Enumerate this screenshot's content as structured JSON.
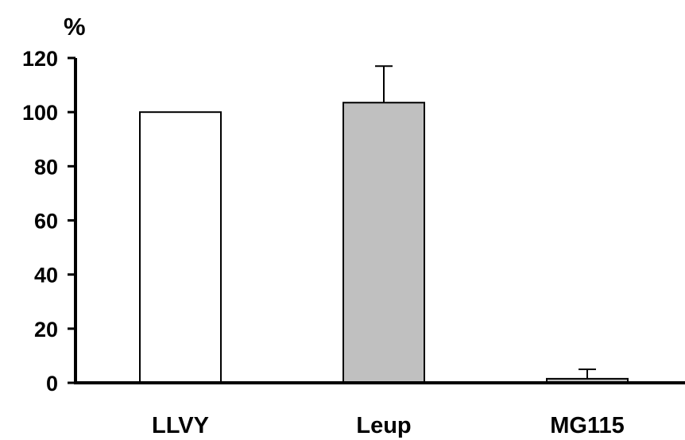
{
  "chart_data": {
    "type": "bar",
    "title": "",
    "xlabel": "",
    "ylabel": "%",
    "ylim": [
      0,
      120
    ],
    "yticks": [
      0,
      20,
      40,
      60,
      80,
      100,
      120
    ],
    "categories": [
      "LLVY",
      "Leup",
      "MG115"
    ],
    "values": [
      100,
      103.5,
      1.5
    ],
    "errors": [
      null,
      13.5,
      3.5
    ],
    "bar_colors": [
      "#ffffff",
      "#c0c0c0",
      "#c0c0c0"
    ],
    "grid": false
  }
}
